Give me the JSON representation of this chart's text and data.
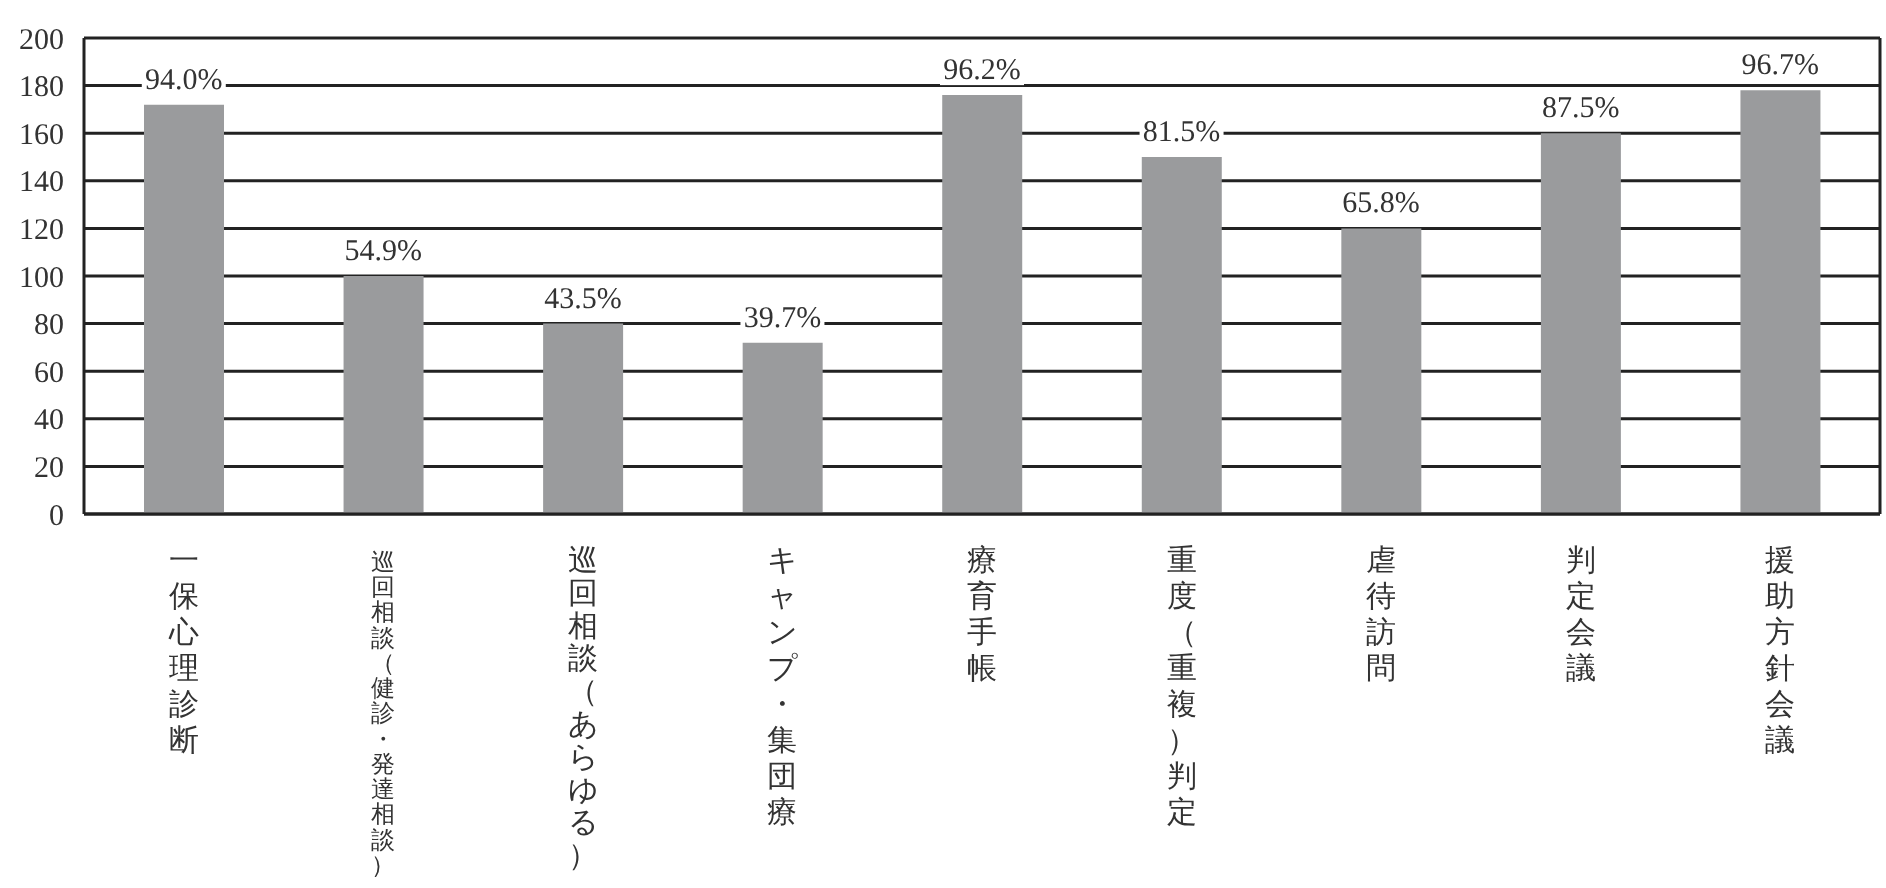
{
  "chart_data": {
    "type": "bar",
    "categories": [
      "一保心理診断",
      "巡回相談（健診・発達相談）",
      "巡回相談（あらゆる）",
      "キャンプ・集団療",
      "療育手帳",
      "重度（重複）判定",
      "虐待訪問",
      "判定会議",
      "援助方針会議"
    ],
    "values": [
      172,
      100,
      80,
      72,
      176,
      150,
      120,
      160,
      178
    ],
    "annotations": [
      {
        "text": "94.0%",
        "x": "一保心理診断",
        "y": 172
      },
      {
        "text": "54.9%",
        "x": "巡回相談（健診・発達相談）",
        "y": 100
      },
      {
        "text": "43.5%",
        "x": "巡回相談（あらゆる）",
        "y": 80
      },
      {
        "text": "39.7%",
        "x": "キャンプ・集団療",
        "y": 72
      },
      {
        "text": "96.2%",
        "x": "療育手帳",
        "y": 176
      },
      {
        "text": "81.5%",
        "x": "重度（重複）判定",
        "y": 150
      },
      {
        "text": "65.8%",
        "x": "虐待訪問",
        "y": 120
      },
      {
        "text": "87.5%",
        "x": "判定会議",
        "y": 160
      },
      {
        "text": "96.7%",
        "x": "援助方針会議",
        "y": 178
      }
    ],
    "color": "#9a9b9d",
    "ylim": [
      0,
      200
    ],
    "yticks": [
      0,
      20,
      40,
      60,
      80,
      100,
      120,
      140,
      160,
      180,
      200
    ],
    "grid": "y"
  }
}
